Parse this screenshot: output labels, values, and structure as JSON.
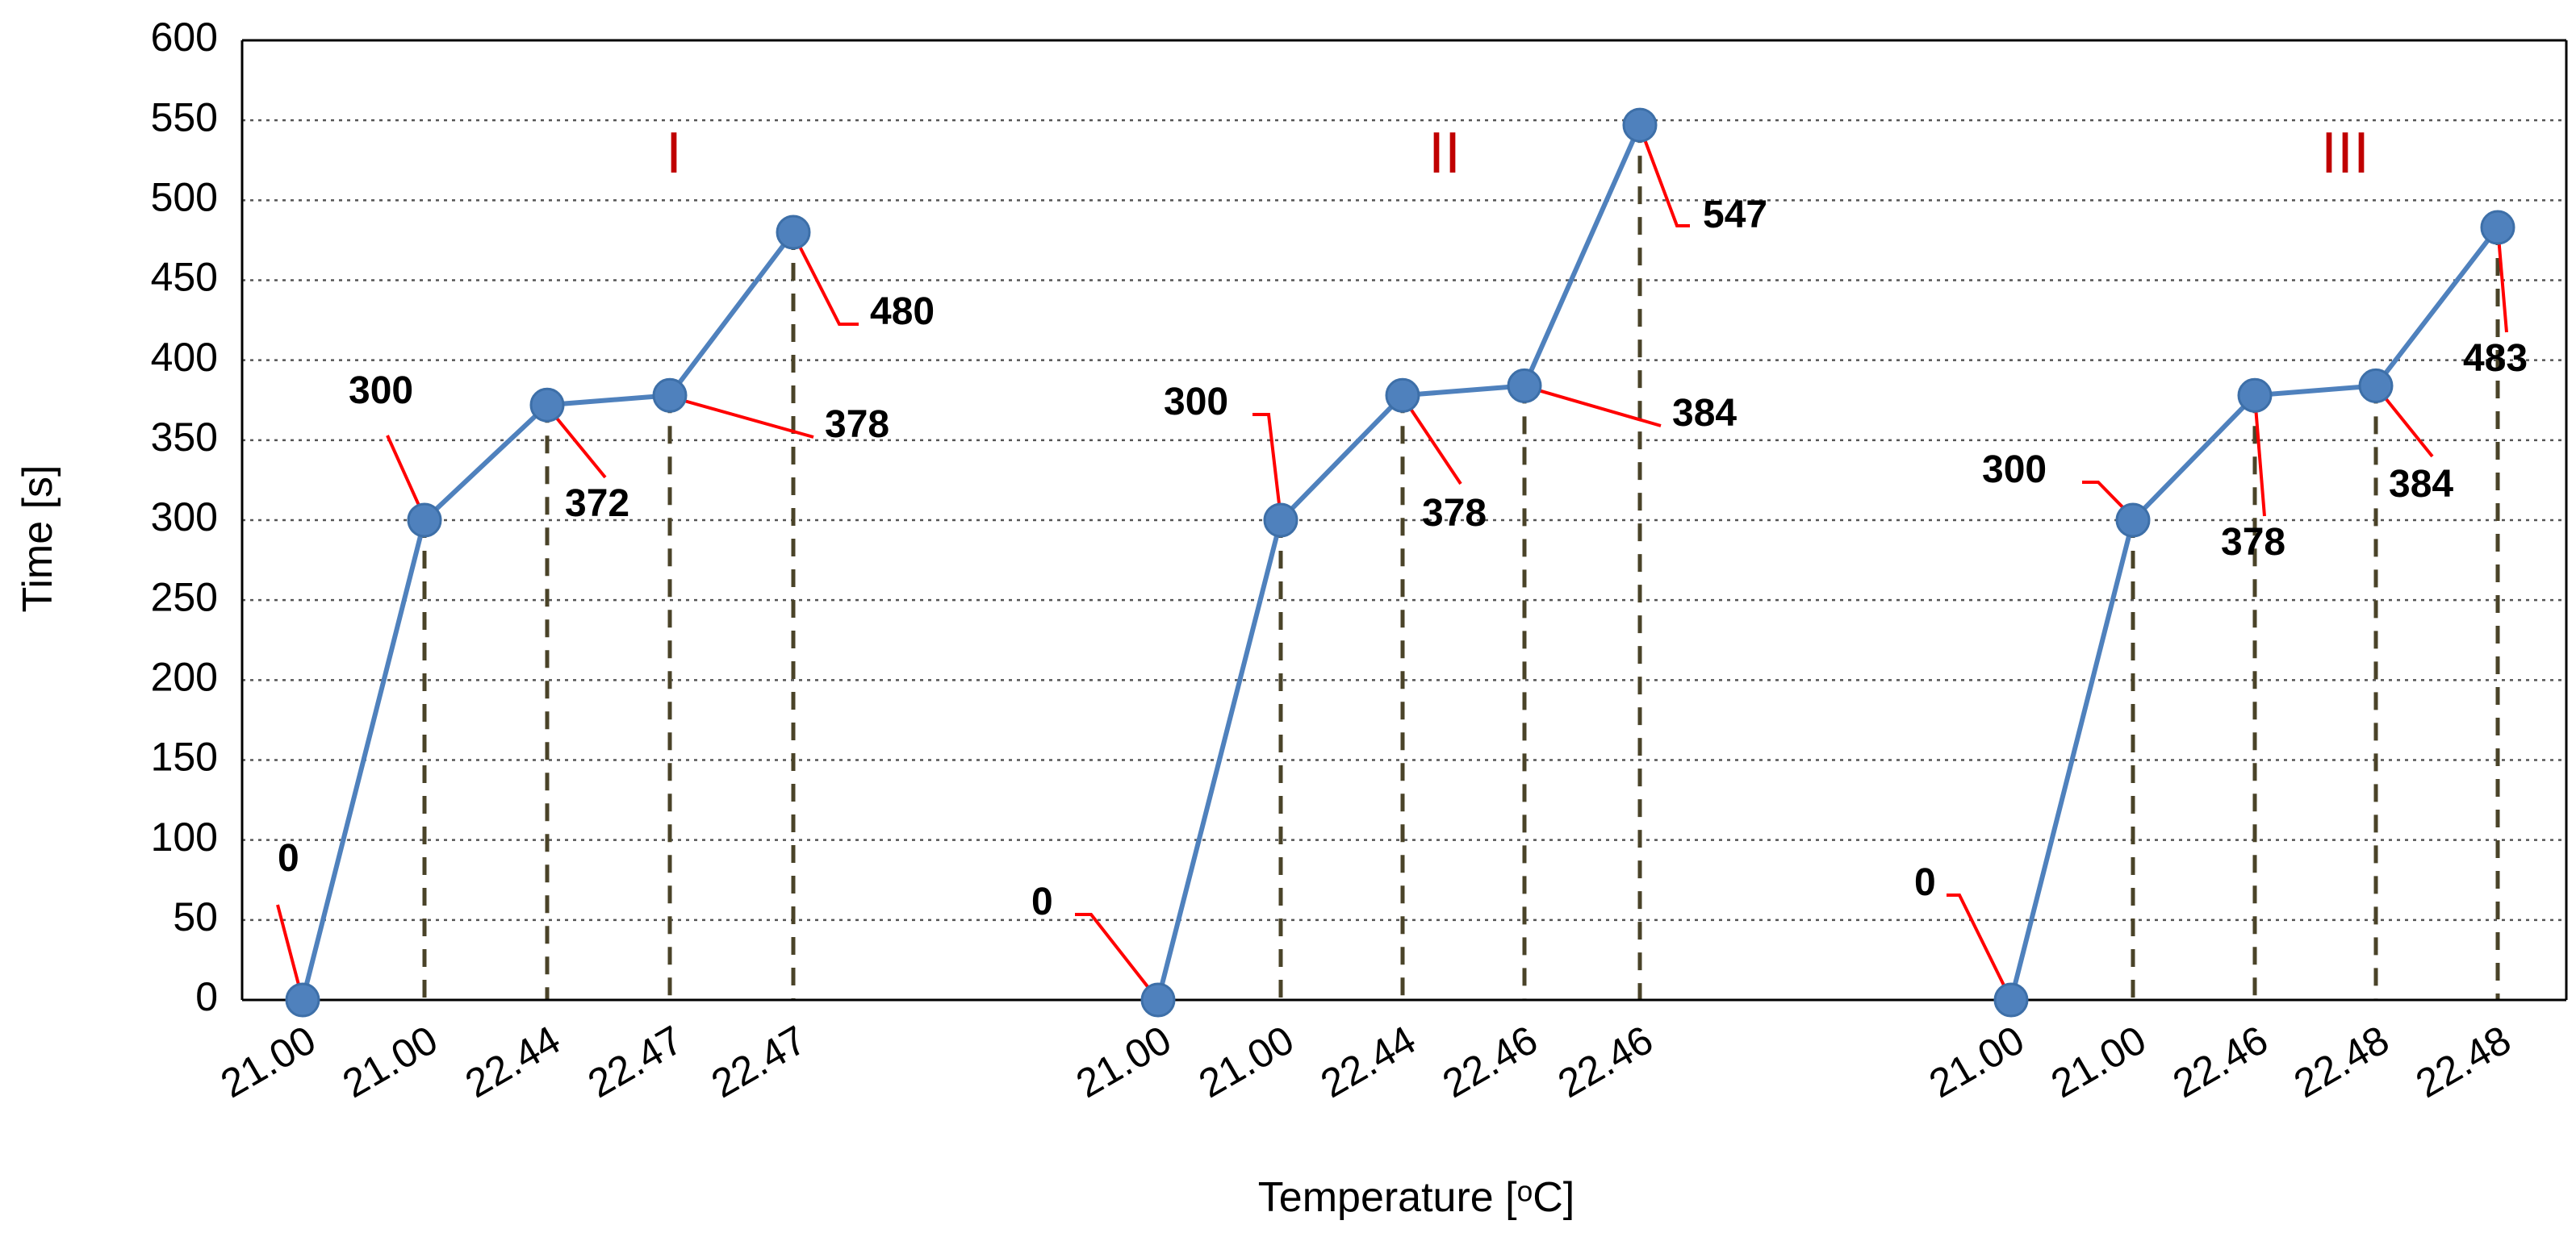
{
  "chart_data": {
    "type": "line",
    "title": "",
    "xlabel": "Temperature [ᵒC]",
    "ylabel": "Time [s]",
    "ylim": [
      0,
      600
    ],
    "yticks": [
      0,
      50,
      100,
      150,
      200,
      250,
      300,
      350,
      400,
      450,
      500,
      550,
      600
    ],
    "grid": true,
    "legend": "none",
    "series": [
      {
        "name": "I",
        "categories": [
          "21.00",
          "21.00",
          "22.44",
          "22.47",
          "22.47"
        ],
        "values": [
          0,
          300,
          372,
          378,
          480
        ],
        "labels": [
          "0",
          "300",
          "372",
          "378",
          "480"
        ]
      },
      {
        "name": "II",
        "categories": [
          "21.00",
          "21.00",
          "22.44",
          "22.46",
          "22.46"
        ],
        "values": [
          0,
          300,
          378,
          384,
          547
        ],
        "labels": [
          "0",
          "300",
          "378",
          "384",
          "547"
        ]
      },
      {
        "name": "III",
        "categories": [
          "21.00",
          "21.00",
          "22.46",
          "22.48",
          "22.48"
        ],
        "values": [
          0,
          300,
          378,
          384,
          483
        ],
        "labels": [
          "0",
          "300",
          "378",
          "384",
          "483"
        ]
      }
    ]
  },
  "colors": {
    "line": "#4f81bd",
    "marker": "#4f81bd",
    "leader": "#ff0000",
    "group_label": "#c00000",
    "drop_line": "#4a4328"
  }
}
